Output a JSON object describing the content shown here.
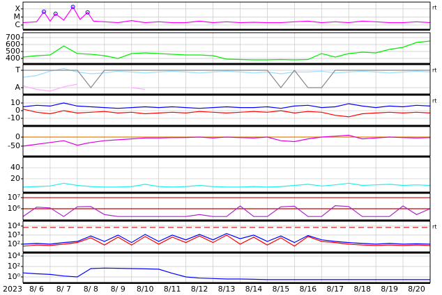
{
  "chart_data": [
    {
      "type": "line",
      "log": true,
      "xlim": [
        6,
        21
      ],
      "ylim": [
        3e-07,
        0.0007
      ],
      "yticks": [
        {
          "value": 0.0001,
          "label": "X"
        },
        {
          "value": 1e-05,
          "label": "M"
        },
        {
          "value": 1e-06,
          "label": "C"
        }
      ],
      "right_label": "rt",
      "x": [
        6,
        6.5,
        6.77,
        7,
        7.2,
        7.5,
        7.84,
        8.1,
        8.38,
        8.6,
        9,
        9.5,
        10,
        10.5,
        11,
        11.5,
        12,
        12.5,
        13,
        13.5,
        14,
        14.5,
        15,
        15.5,
        16,
        16.5,
        17,
        17.5,
        18,
        18.5,
        19,
        19.5,
        20,
        20.5,
        21
      ],
      "series": [
        {
          "color": "#ff00ff",
          "values": [
            2e-06,
            2.5e-06,
            4.5e-05,
            3e-06,
            2.5e-05,
            4e-06,
            0.00018,
            5e-06,
            3.7e-05,
            3e-06,
            2.5e-06,
            2e-06,
            3.5e-06,
            2e-06,
            2.5e-06,
            2e-06,
            2e-06,
            3e-06,
            2e-06,
            2.5e-06,
            2e-06,
            2.2e-06,
            2e-06,
            2e-06,
            2.5e-06,
            3e-06,
            2e-06,
            2.5e-06,
            2e-06,
            3e-06,
            2.5e-06,
            2e-06,
            2e-06,
            2.5e-06,
            2e-06
          ]
        }
      ],
      "markers": {
        "color": "#0000ff",
        "x": [
          6.77,
          7.2,
          7.84,
          8.38
        ],
        "values": [
          4.5e-05,
          2.5e-05,
          0.00018,
          3.7e-05
        ]
      }
    },
    {
      "type": "line",
      "xlim": [
        6,
        21
      ],
      "ylim": [
        330,
        770
      ],
      "yticks": [
        400,
        500,
        600,
        700
      ],
      "x": [
        6,
        6.5,
        7,
        7.5,
        8,
        8.5,
        9,
        9.5,
        10,
        10.5,
        11,
        11.5,
        12,
        12.5,
        13,
        13.5,
        14,
        14.5,
        15,
        15.5,
        16,
        16.5,
        17,
        17.5,
        18,
        18.5,
        19,
        19.5,
        20,
        20.5,
        21
      ],
      "series": [
        {
          "color": "#00ee00",
          "values": [
            420,
            440,
            450,
            580,
            470,
            460,
            440,
            400,
            470,
            480,
            470,
            460,
            450,
            450,
            440,
            390,
            385,
            380,
            380,
            385,
            380,
            385,
            470,
            420,
            470,
            490,
            480,
            530,
            560,
            630,
            650
          ]
        }
      ]
    },
    {
      "type": "line",
      "xlim": [
        6,
        21
      ],
      "ylim": [
        -0.36,
        1.32
      ],
      "yticks": [
        {
          "value": 1,
          "label": "T"
        },
        {
          "value": 0,
          "label": "A"
        }
      ],
      "right_label": "rt",
      "x": [
        6,
        6.5,
        7,
        7.5,
        8,
        8.5,
        9,
        9.5,
        10,
        10.5,
        11,
        11.5,
        12,
        12.5,
        13,
        13.5,
        14,
        14.5,
        15,
        15.5,
        16,
        16.5,
        17,
        17.5,
        18,
        18.5,
        19,
        19.5,
        20,
        20.5,
        21
      ],
      "series": [
        {
          "color": "#99ddff",
          "values": [
            0.6,
            0.7,
            0.95,
            1.1,
            0.9,
            0.8,
            0.85,
            0.95,
            0.9,
            0.85,
            0.9,
            0.95,
            0.9,
            0.85,
            0.9,
            0.95,
            0.9,
            0.85,
            0.9,
            0.8,
            0.9,
            0.9,
            0.95,
            0.85,
            0.9,
            0.95,
            0.9,
            0.85,
            0.9,
            0.95,
            0.9
          ]
        },
        {
          "color": "#ffaaff",
          "values": [
            0.1,
            -0.1,
            -0.2,
            0.05,
            0.2,
            null,
            null,
            null,
            0.0,
            -0.1,
            null,
            null,
            null,
            null,
            null,
            null,
            null,
            null,
            null,
            null,
            null,
            null,
            null,
            null,
            null,
            null,
            null,
            null,
            null,
            null,
            null
          ]
        },
        {
          "color": "#888888",
          "values": [
            1,
            1,
            1,
            1,
            1,
            0,
            1,
            1,
            1,
            1,
            1,
            1,
            1,
            1,
            1,
            1,
            1,
            1,
            1,
            0,
            1,
            0,
            0,
            1,
            1,
            1,
            1,
            1,
            1,
            1,
            1
          ]
        }
      ]
    },
    {
      "type": "line",
      "xlim": [
        6,
        21
      ],
      "ylim": [
        -19,
        20
      ],
      "yticks": [
        10,
        0,
        -10
      ],
      "right_label": "rt",
      "x": [
        6,
        6.5,
        7,
        7.5,
        8,
        8.5,
        9,
        9.5,
        10,
        10.5,
        11,
        11.5,
        12,
        12.5,
        13,
        13.5,
        14,
        14.5,
        15,
        15.5,
        16,
        16.5,
        17,
        17.5,
        18,
        18.5,
        19,
        19.5,
        20,
        20.5,
        21
      ],
      "series": [
        {
          "color": "#0000ff",
          "values": [
            5,
            7,
            6,
            10,
            6,
            5,
            4,
            3,
            4,
            5,
            4,
            5,
            4,
            3,
            4,
            5,
            4,
            4,
            5,
            3,
            6,
            7,
            4,
            5,
            9,
            6,
            4,
            6,
            5,
            7,
            6
          ]
        },
        {
          "color": "#ff0000",
          "values": [
            2,
            -2,
            -4,
            0,
            -3,
            -2,
            -1,
            -3,
            -2,
            -4,
            -3,
            -2,
            -3,
            -1,
            -2,
            -3,
            -2,
            -1,
            -2,
            0,
            -3,
            -1,
            -2,
            -6,
            -8,
            -4,
            -3,
            -2,
            -3,
            -2,
            -3
          ]
        }
      ]
    },
    {
      "type": "line",
      "xlim": [
        6,
        21
      ],
      "ylim": [
        -104,
        58
      ],
      "yticks": [
        0,
        -50
      ],
      "hlines": [
        {
          "value": 0,
          "color": "#e08000",
          "dashed": false
        }
      ],
      "x": [
        6,
        6.5,
        7,
        7.5,
        8,
        8.5,
        9,
        9.5,
        10,
        10.5,
        11,
        11.5,
        12,
        12.5,
        13,
        13.5,
        14,
        14.5,
        15,
        15.5,
        16,
        16.5,
        17,
        17.5,
        18,
        18.5,
        19,
        19.5,
        20,
        20.5,
        21
      ],
      "series": [
        {
          "color": "#dd00dd",
          "values": [
            -50,
            -40,
            -30,
            -20,
            -45,
            -30,
            -20,
            -15,
            -10,
            -5,
            -5,
            -3,
            -2,
            0,
            -5,
            0,
            -3,
            -5,
            0,
            -20,
            -25,
            -10,
            0,
            5,
            10,
            -10,
            -5,
            0,
            -3,
            -5,
            -3
          ]
        }
      ]
    },
    {
      "type": "line",
      "xlim": [
        6,
        21
      ],
      "ylim": [
        -4,
        59
      ],
      "yticks": [
        40,
        20
      ],
      "x": [
        6,
        6.5,
        7,
        7.5,
        8,
        8.5,
        9,
        9.5,
        10,
        10.5,
        11,
        11.5,
        12,
        12.5,
        13,
        13.5,
        14,
        14.5,
        15,
        15.5,
        16,
        16.5,
        17,
        17.5,
        18,
        18.5,
        19,
        19.5,
        20,
        20.5,
        21
      ],
      "series": [
        {
          "color": "#22eeee",
          "values": [
            5,
            6,
            7,
            12,
            8,
            6,
            5,
            5,
            6,
            10,
            6,
            5,
            6,
            8,
            6,
            5,
            5,
            6,
            5,
            6,
            8,
            10,
            7,
            9,
            12,
            8,
            9,
            10,
            8,
            9,
            8
          ]
        }
      ]
    },
    {
      "type": "line",
      "log": true,
      "xlim": [
        6,
        21
      ],
      "ylim": [
        100000,
        24000000
      ],
      "yticks": [
        {
          "value": 10000000,
          "label": "10⁷"
        },
        {
          "value": 1000000,
          "label": "10⁶"
        }
      ],
      "hlines": [
        {
          "value": 10000000,
          "color": "#cc0000",
          "dashed": false
        },
        {
          "value": 1000000,
          "color": "#cc0000",
          "dashed": false
        }
      ],
      "x": [
        6,
        6.5,
        7,
        7.5,
        8,
        8.5,
        9,
        9.5,
        10,
        10.5,
        11,
        11.5,
        12,
        12.5,
        13,
        13.5,
        14,
        14.5,
        15,
        15.5,
        16,
        16.5,
        17,
        17.5,
        18,
        18.5,
        19,
        19.5,
        20,
        20.5,
        21
      ],
      "series": [
        {
          "color": "#aa22cc",
          "values": [
            200000,
            1400000,
            1200000,
            200000,
            1500000,
            1600000,
            300000,
            200000,
            200000,
            200000,
            200000,
            200000,
            200000,
            300000,
            200000,
            200000,
            1800000,
            200000,
            200000,
            1500000,
            1700000,
            200000,
            200000,
            1900000,
            1600000,
            200000,
            200000,
            200000,
            1800000,
            300000,
            1000000
          ]
        }
      ]
    },
    {
      "type": "line",
      "log": true,
      "xlim": [
        6,
        21
      ],
      "ylim": [
        14,
        34000
      ],
      "yticks": [
        {
          "value": 10000,
          "label": "10⁴"
        },
        {
          "value": 1000,
          "label": "10³"
        },
        {
          "value": 100,
          "label": "10²"
        }
      ],
      "hlines": [
        {
          "value": 7000,
          "color": "#dd0000",
          "dashed": true
        }
      ],
      "right_label": "rt",
      "x": [
        6,
        6.5,
        7,
        7.5,
        8,
        8.5,
        9,
        9.5,
        10,
        10.5,
        11,
        11.5,
        12,
        12.5,
        13,
        13.5,
        14,
        14.5,
        15,
        15.5,
        16,
        16.5,
        17,
        17.5,
        18,
        18.5,
        19,
        19.5,
        20,
        20.5,
        21
      ],
      "series": [
        {
          "color": "#0000ff",
          "values": [
            100,
            120,
            100,
            150,
            200,
            800,
            200,
            1000,
            150,
            1200,
            200,
            1000,
            300,
            1200,
            300,
            1500,
            400,
            1000,
            200,
            800,
            150,
            900,
            300,
            200,
            150,
            120,
            100,
            120,
            100,
            110,
            100
          ]
        },
        {
          "color": "#ff0000",
          "values": [
            60,
            80,
            70,
            100,
            150,
            500,
            80,
            600,
            80,
            700,
            100,
            600,
            150,
            800,
            150,
            1000,
            100,
            600,
            80,
            500,
            60,
            700,
            200,
            150,
            100,
            80,
            70,
            80,
            70,
            80,
            70
          ]
        }
      ]
    },
    {
      "type": "line",
      "log": true,
      "xlim": [
        6,
        21
      ],
      "ylim": [
        0.086,
        34000
      ],
      "yticks": [
        {
          "value": 10000,
          "label": "10⁴"
        },
        {
          "value": 100,
          "label": "10²"
        },
        {
          "value": 1,
          "label": "10⁰"
        }
      ],
      "year": "2023",
      "xticks": [
        {
          "value": 6,
          "label": "8/ 6"
        },
        {
          "value": 7,
          "label": "8/ 7"
        },
        {
          "value": 8,
          "label": "8/ 8"
        },
        {
          "value": 9,
          "label": "8/ 9"
        },
        {
          "value": 10,
          "label": "8/10"
        },
        {
          "value": 11,
          "label": "8/11"
        },
        {
          "value": 12,
          "label": "8/12"
        },
        {
          "value": 13,
          "label": "8/13"
        },
        {
          "value": 14,
          "label": "8/14"
        },
        {
          "value": 15,
          "label": "8/15"
        },
        {
          "value": 16,
          "label": "8/16"
        },
        {
          "value": 17,
          "label": "8/17"
        },
        {
          "value": 18,
          "label": "8/18"
        },
        {
          "value": 19,
          "label": "8/19"
        },
        {
          "value": 20,
          "label": "8/20"
        }
      ],
      "x": [
        6,
        6.5,
        7,
        7.5,
        8,
        8.5,
        9,
        9.5,
        10,
        10.5,
        11,
        11.5,
        12,
        12.5,
        13,
        13.5,
        14,
        14.5,
        15,
        15.5,
        16,
        16.5,
        17,
        17.5,
        18,
        18.5,
        19,
        19.5,
        20,
        20.5,
        21
      ],
      "series": [
        {
          "color": "#0000ff",
          "values": [
            6,
            4,
            3,
            1.5,
            1,
            40,
            50,
            45,
            40,
            35,
            30,
            5,
            1,
            0.6,
            0.5,
            0.4,
            0.4,
            0.35,
            0.3,
            0.3,
            0.3,
            0.3,
            0.3,
            0.3,
            0.3,
            0.3,
            0.3,
            0.3,
            0.3,
            0.3,
            0.3
          ]
        }
      ]
    }
  ]
}
